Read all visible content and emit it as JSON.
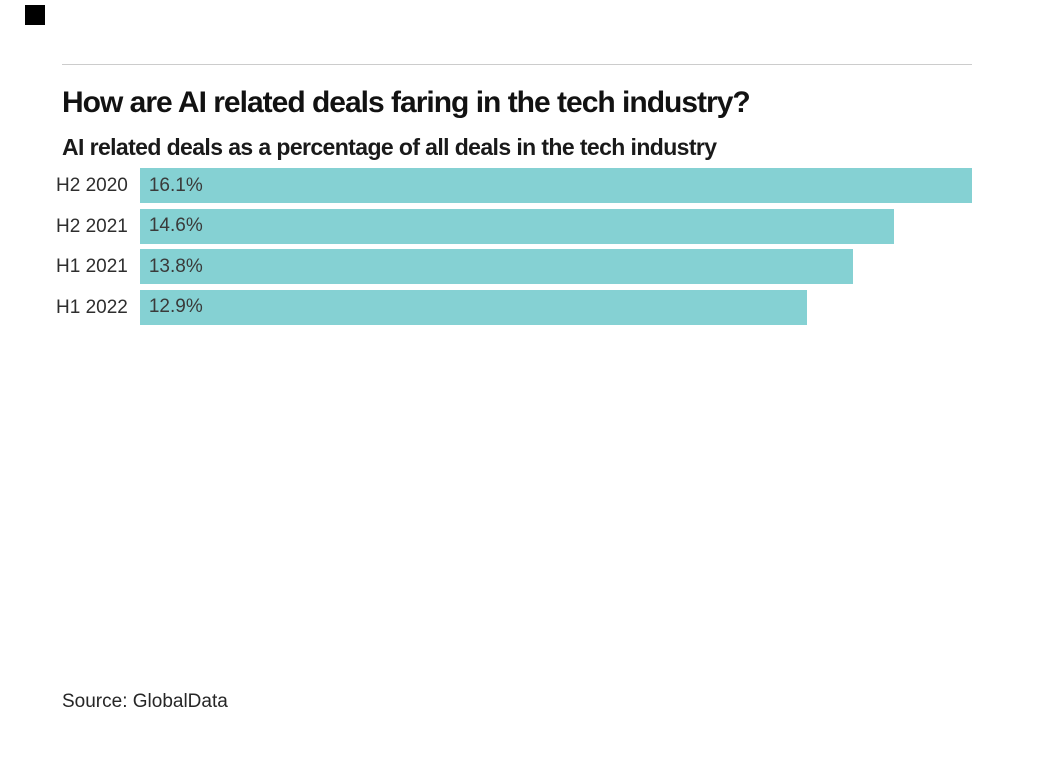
{
  "brand": {
    "logo_square_color": "#000000"
  },
  "header": {
    "title": "How are AI related deals faring in the tech industry?",
    "subtitle": "AI related deals as a percentage of all deals in the tech industry"
  },
  "chart_data": {
    "type": "bar",
    "orientation": "horizontal",
    "title": "How are AI related deals faring in the tech industry?",
    "subtitle": "AI related deals as a percentage of all deals in the tech industry",
    "categories": [
      "H2 2020",
      "H2 2021",
      "H1 2021",
      "H1 2022"
    ],
    "values": [
      16.1,
      14.6,
      13.8,
      12.9
    ],
    "value_labels": [
      "16.1%",
      "14.6%",
      "13.8%",
      "12.9%"
    ],
    "unit": "%",
    "xlim": [
      0,
      16.1
    ],
    "bar_color": "#85d1d3",
    "grid": false,
    "legend": false,
    "value_label_position": "inside-left"
  },
  "footer": {
    "source": "Source: GlobalData"
  },
  "colors": {
    "background": "#ffffff",
    "divider": "#cccccc",
    "title_text": "#121212",
    "category_label_text": "#2e2e2e",
    "value_label_text": "#3a3a3a",
    "source_text": "#262626"
  }
}
